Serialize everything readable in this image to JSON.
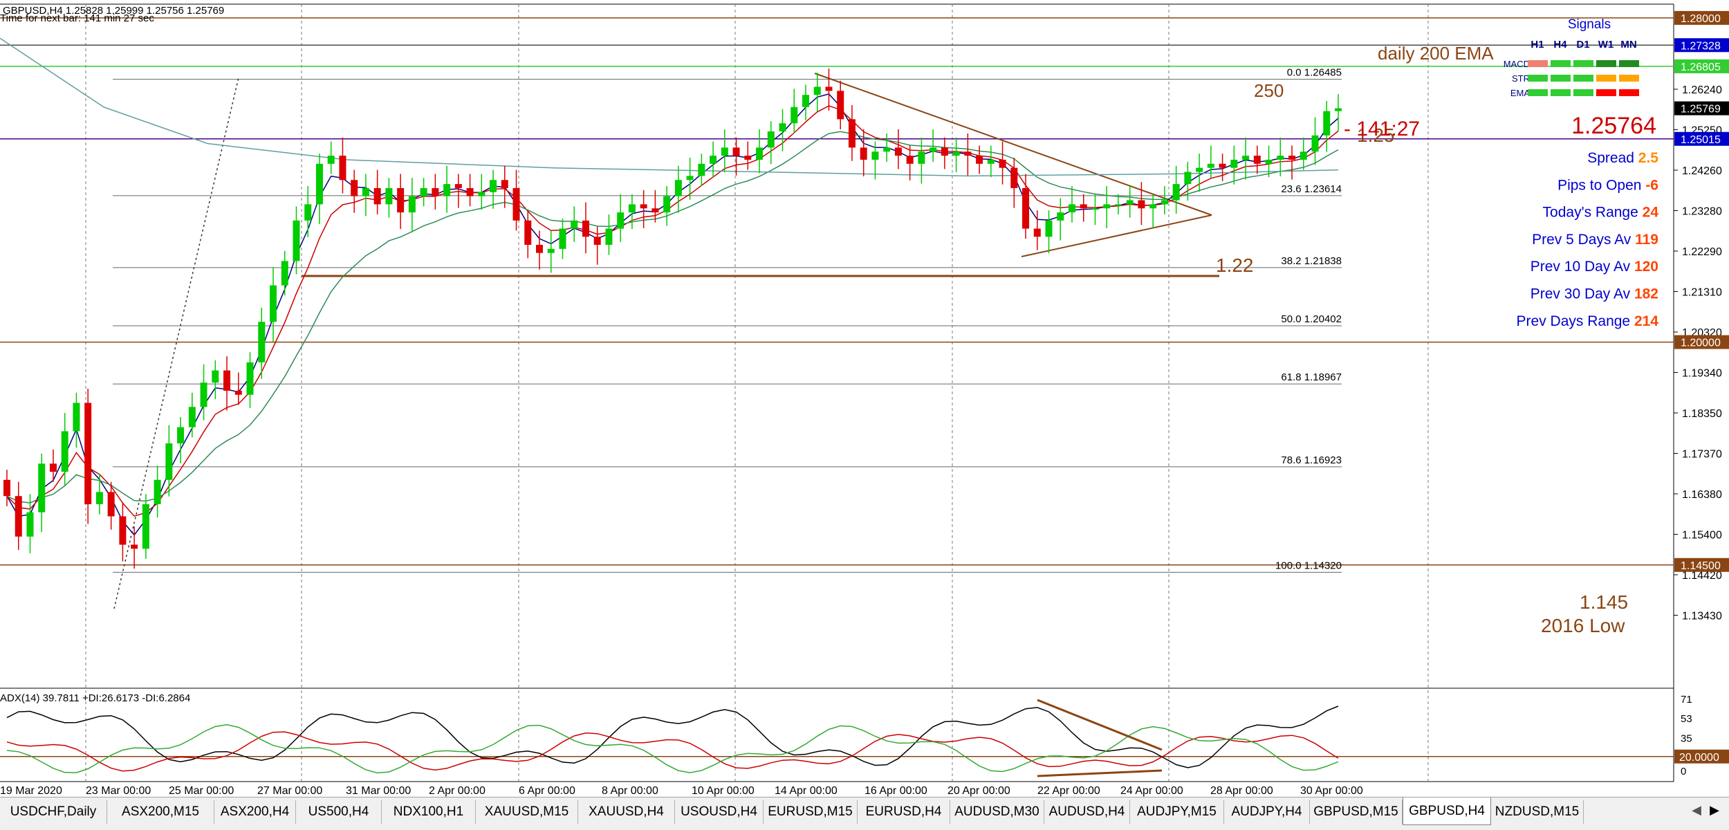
{
  "header": {
    "symbol_line": "GBPUSD,H4  1.25828 1.25999 1.25756 1.25769",
    "timer_line": "Time for next bar: 141 min 27 sec"
  },
  "annotations": {
    "daily_ema": "daily 200 EMA",
    "label_250": "250",
    "label_1_25": "1.25",
    "label_1_22": "1.22",
    "label_1_145": "1.145",
    "label_2016_low": "2016 Low",
    "timer_big": "- 141:27"
  },
  "price_axis": {
    "ticks": [
      "1.26240",
      "1.25250",
      "1.24260",
      "1.23280",
      "1.22290",
      "1.21310",
      "1.20320",
      "1.19340",
      "1.18350",
      "1.17370",
      "1.16380",
      "1.15400",
      "1.14420",
      "1.13430"
    ],
    "boxed": [
      {
        "text": "1.28000",
        "bg": "#8b4513",
        "fg": "#ffffff",
        "price": 1.28
      },
      {
        "text": "1.27328",
        "bg": "#0000cd",
        "fg": "#ffffff",
        "price": 1.27328
      },
      {
        "text": "1.26805",
        "bg": "#32cd32",
        "fg": "#ffffff",
        "price": 1.26805
      },
      {
        "text": "1.25769",
        "bg": "#000000",
        "fg": "#ffffff",
        "price": 1.25769
      },
      {
        "text": "1.25015",
        "bg": "#0000cd",
        "fg": "#ffffff",
        "price": 1.25015
      },
      {
        "text": "1.20000",
        "bg": "#8b4513",
        "fg": "#ffffff",
        "price": 1.2
      },
      {
        "text": "1.14500",
        "bg": "#8b4513",
        "fg": "#ffffff",
        "price": 1.145
      }
    ]
  },
  "fib_levels": [
    {
      "pct": "0.0",
      "price": 1.26485,
      "text": "1.26485"
    },
    {
      "pct": "23.6",
      "price": 1.23614,
      "text": "1.23614"
    },
    {
      "pct": "38.2",
      "price": 1.21838,
      "text": "1.21838"
    },
    {
      "pct": "50.0",
      "price": 1.20402,
      "text": "1.20402"
    },
    {
      "pct": "61.8",
      "price": 1.18967,
      "text": "1.18967"
    },
    {
      "pct": "78.6",
      "price": 1.16923,
      "text": "1.16923"
    },
    {
      "pct": "100.0",
      "price": 1.1432,
      "text": "1.14320"
    }
  ],
  "signals": {
    "title": "Signals",
    "columns": [
      "H1",
      "H4",
      "D1",
      "W1",
      "MN"
    ],
    "rows": [
      {
        "label": "MACD",
        "colors": [
          "#f08070",
          "#32cd32",
          "#32cd32",
          "#228b22",
          "#228b22"
        ]
      },
      {
        "label": "STR",
        "colors": [
          "#32cd32",
          "#32cd32",
          "#32cd32",
          "#ffa500",
          "#ffa500"
        ]
      },
      {
        "label": "EMA",
        "colors": [
          "#32cd32",
          "#32cd32",
          "#32cd32",
          "#ff0000",
          "#ff0000"
        ]
      }
    ]
  },
  "info_panel": {
    "price": "1.25764",
    "rows": [
      {
        "label": "Spread",
        "value": "2.5",
        "value_color": "#ff8c00"
      },
      {
        "label": "Pips to Open",
        "value": "-6",
        "value_color": "#ff4500"
      },
      {
        "label": "Today's Range",
        "value": "24",
        "value_color": "#ff4500"
      },
      {
        "label": "Prev 5 Days Av",
        "value": "119",
        "value_color": "#ff4500"
      },
      {
        "label": "Prev 10 Day Av",
        "value": "120",
        "value_color": "#ff4500"
      },
      {
        "label": "Prev 30 Day Av",
        "value": "182",
        "value_color": "#ff4500"
      },
      {
        "label": "Prev Days Range",
        "value": "214",
        "value_color": "#ff4500"
      }
    ]
  },
  "adx": {
    "label": "ADX(14) 39.7811 +DI:26.6173 -DI:6.2864",
    "ticks": [
      "71",
      "53",
      "35",
      "0"
    ],
    "level": "20.0000"
  },
  "time_axis": {
    "labels": [
      "19 Mar 2020",
      "23 Mar 00:00",
      "25 Mar 00:00",
      "27 Mar 00:00",
      "31 Mar 00:00",
      "2 Apr 00:00",
      "6 Apr 00:00",
      "8 Apr 00:00",
      "10 Apr 00:00",
      "14 Apr 00:00",
      "16 Apr 00:00",
      "20 Apr 00:00",
      "22 Apr 00:00",
      "24 Apr 00:00",
      "28 Apr 00:00",
      "30 Apr 00:00"
    ]
  },
  "tabs": [
    {
      "label": "USDCHF,Daily",
      "active": false
    },
    {
      "label": "ASX200,M15",
      "active": false
    },
    {
      "label": "ASX200,H4",
      "active": false
    },
    {
      "label": "US500,H4",
      "active": false
    },
    {
      "label": "NDX100,H1",
      "active": false
    },
    {
      "label": "XAUUSD,M15",
      "active": false
    },
    {
      "label": "XAUUSD,H4",
      "active": false
    },
    {
      "label": "USOUSD,H4",
      "active": false
    },
    {
      "label": "EURUSD,M15",
      "active": false
    },
    {
      "label": "EURUSD,H4",
      "active": false
    },
    {
      "label": "AUDUSD,M30",
      "active": false
    },
    {
      "label": "AUDUSD,H4",
      "active": false
    },
    {
      "label": "AUDJPY,M15",
      "active": false
    },
    {
      "label": "AUDJPY,H4",
      "active": false
    },
    {
      "label": "GBPUSD,M15",
      "active": false
    },
    {
      "label": "GBPUSD,H4",
      "active": true
    },
    {
      "label": "NZDUSD,M15",
      "active": false
    }
  ],
  "chart_data": {
    "type": "candlestick",
    "symbol": "GBPUSD",
    "timeframe": "H4",
    "ylim": [
      1.13,
      1.281
    ],
    "series": [
      {
        "name": "GBPUSD",
        "close_approx": [
          1.162,
          1.152,
          1.158,
          1.17,
          1.168,
          1.178,
          1.185,
          1.16,
          1.163,
          1.157,
          1.15,
          1.149,
          1.16,
          1.166,
          1.175,
          1.179,
          1.184,
          1.19,
          1.193,
          1.188,
          1.187,
          1.195,
          1.205,
          1.214,
          1.22,
          1.23,
          1.234,
          1.244,
          1.246,
          1.24,
          1.236,
          1.238,
          1.234,
          1.238,
          1.232,
          1.236,
          1.238,
          1.236,
          1.239,
          1.238,
          1.236,
          1.237,
          1.24,
          1.238,
          1.23,
          1.224,
          1.222,
          1.223,
          1.228,
          1.23,
          1.226,
          1.224,
          1.228,
          1.232,
          1.234,
          1.233,
          1.232,
          1.236,
          1.24,
          1.241,
          1.244,
          1.246,
          1.248,
          1.246,
          1.245,
          1.248,
          1.252,
          1.254,
          1.258,
          1.261,
          1.263,
          1.262,
          1.255,
          1.248,
          1.245,
          1.247,
          1.248,
          1.246,
          1.244,
          1.247,
          1.248,
          1.246,
          1.247,
          1.246,
          1.244,
          1.245,
          1.243,
          1.238,
          1.228,
          1.226,
          1.23,
          1.232,
          1.234,
          1.233,
          1.233,
          1.234,
          1.234,
          1.235,
          1.233,
          1.234,
          1.235,
          1.239,
          1.242,
          1.243,
          1.244,
          1.243,
          1.245,
          1.246,
          1.244,
          1.245,
          1.246,
          1.245,
          1.247,
          1.251,
          1.257,
          1.2577
        ]
      }
    ]
  }
}
